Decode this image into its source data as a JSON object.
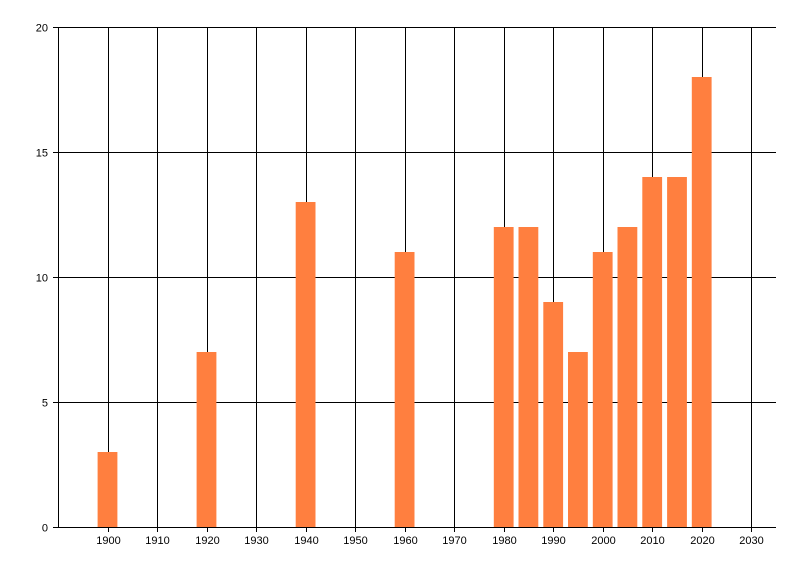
{
  "chart_data": {
    "type": "bar",
    "title": "",
    "xlabel": "",
    "ylabel": "",
    "x": [
      1900,
      1920,
      1940,
      1960,
      1980,
      1985,
      1990,
      1995,
      2000,
      2005,
      2010,
      2015,
      2020
    ],
    "values": [
      3,
      7,
      13,
      11,
      12,
      12,
      9,
      7,
      11,
      12,
      14,
      14,
      18
    ],
    "bar_color": "#FF7F3F",
    "xlim": [
      1890,
      2035
    ],
    "ylim": [
      0,
      20
    ],
    "x_ticks": [
      "1900",
      "1910",
      "1920",
      "1930",
      "1940",
      "1950",
      "1960",
      "1970",
      "1980",
      "1990",
      "2000",
      "2010",
      "2020",
      "2030"
    ],
    "y_ticks": [
      "0",
      "5",
      "10",
      "15",
      "20"
    ],
    "grid": true
  }
}
